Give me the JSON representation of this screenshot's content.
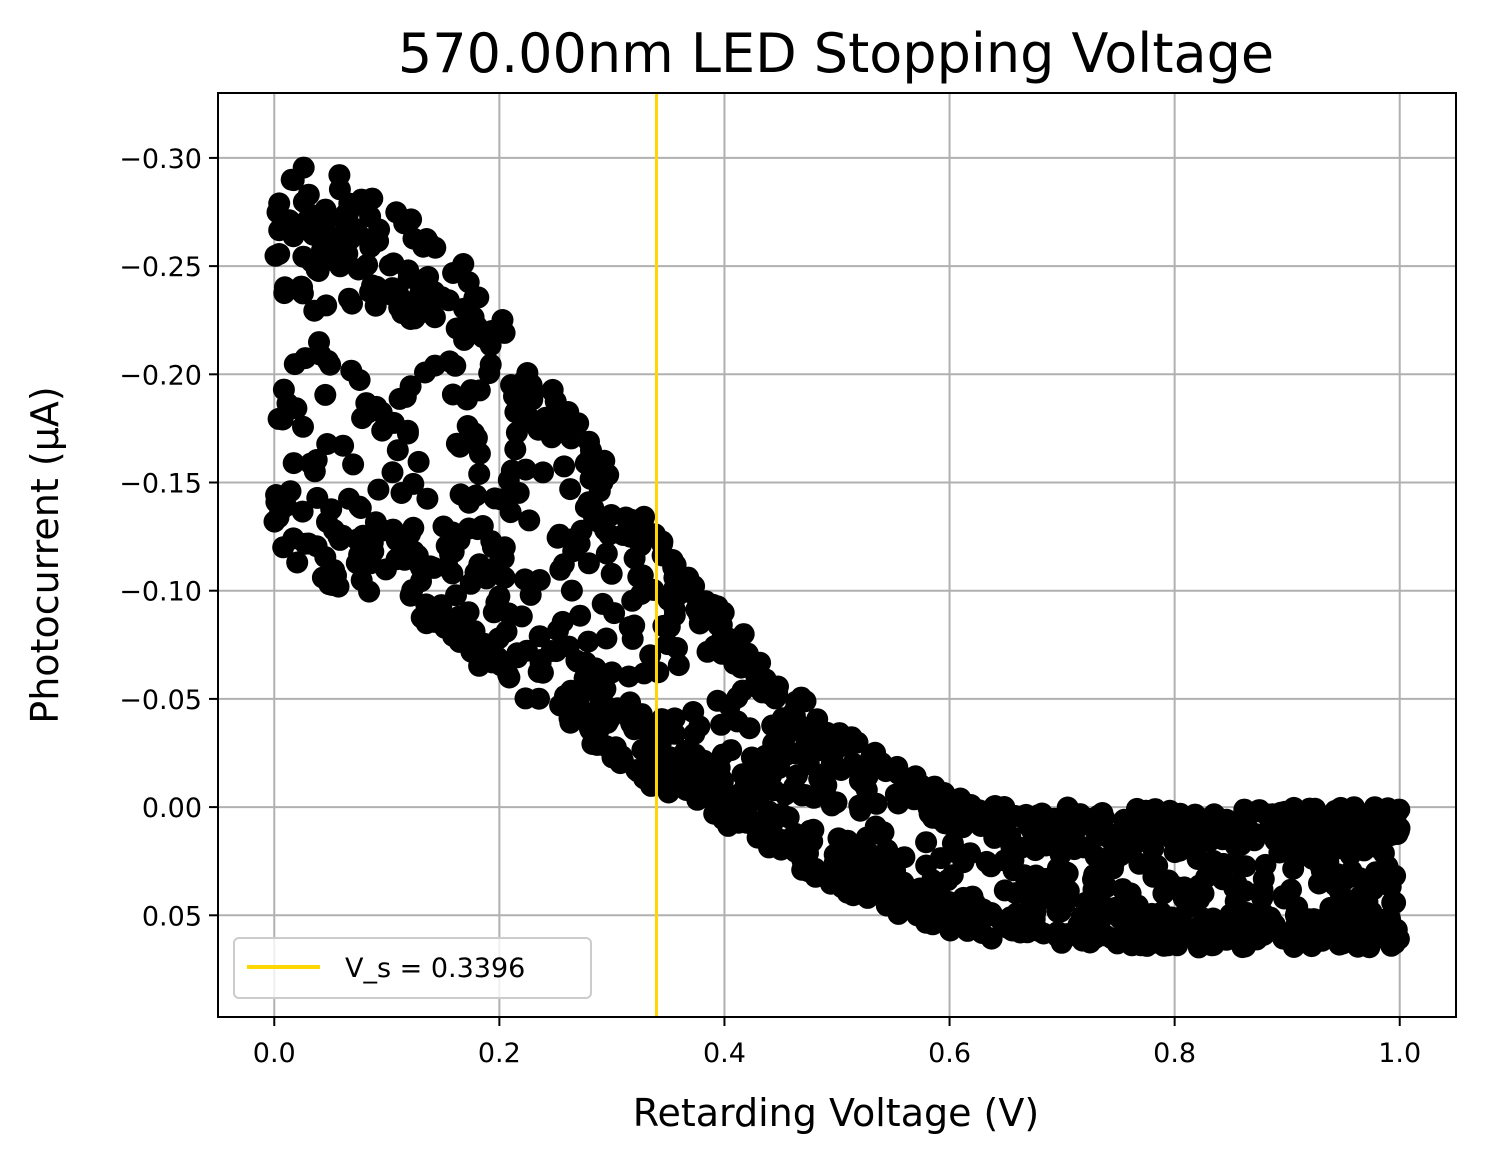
{
  "chart_data": {
    "type": "scatter",
    "title": "570.00nm LED Stopping Voltage",
    "xlabel": "Retarding Voltage (V)",
    "ylabel": "Photocurrent (µA)",
    "xlim": [
      -0.05,
      1.05
    ],
    "ylim": [
      0.097,
      -0.33
    ],
    "y_axis_inverted": true,
    "grid": true,
    "x_ticks": [
      0.0,
      0.2,
      0.4,
      0.6,
      0.8,
      1.0
    ],
    "x_tick_labels": [
      "0.0",
      "0.2",
      "0.4",
      "0.6",
      "0.8",
      "1.0"
    ],
    "y_ticks": [
      -0.3,
      -0.25,
      -0.2,
      -0.15,
      -0.1,
      -0.05,
      0.0,
      0.05
    ],
    "y_tick_labels": [
      "−0.30",
      "−0.25",
      "−0.20",
      "−0.15",
      "−0.10",
      "−0.05",
      "0.00",
      "0.05"
    ],
    "marker_color": "#000000",
    "stopping_voltage": {
      "x": 0.3396,
      "color": "#ffd700",
      "legend_label": "V_s = 0.3396"
    },
    "legend_placement": "lower-left",
    "band_envelope": {
      "x": [
        0.0,
        0.05,
        0.1,
        0.15,
        0.2,
        0.25,
        0.3,
        0.35,
        0.4,
        0.45,
        0.5,
        0.55,
        0.6,
        0.65,
        0.7,
        0.75,
        0.8,
        0.85,
        0.9,
        0.95,
        1.0
      ],
      "upper_edge_current": [
        -0.3,
        -0.295,
        -0.28,
        -0.262,
        -0.235,
        -0.195,
        -0.155,
        -0.12,
        -0.09,
        -0.062,
        -0.037,
        -0.02,
        -0.006,
        0.0,
        0.0,
        0.0,
        0.0,
        0.0,
        0.0,
        0.0,
        0.0
      ],
      "lower_edge_current": [
        -0.11,
        -0.1,
        -0.094,
        -0.078,
        -0.058,
        -0.038,
        -0.02,
        -0.005,
        0.01,
        0.025,
        0.038,
        0.05,
        0.058,
        0.062,
        0.063,
        0.064,
        0.065,
        0.065,
        0.065,
        0.065,
        0.065
      ]
    }
  }
}
